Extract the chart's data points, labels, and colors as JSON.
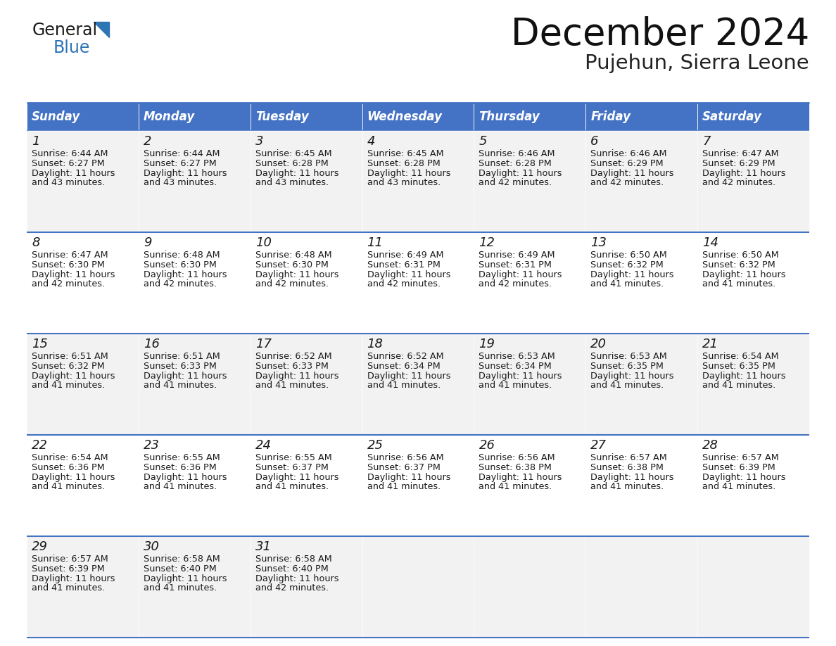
{
  "title": "December 2024",
  "subtitle": "Pujehun, Sierra Leone",
  "days_of_week": [
    "Sunday",
    "Monday",
    "Tuesday",
    "Wednesday",
    "Thursday",
    "Friday",
    "Saturday"
  ],
  "header_bg": "#4472C4",
  "header_text": "#FFFFFF",
  "row_bg_odd": "#F2F2F2",
  "row_bg_even": "#FFFFFF",
  "border_color": "#4472C4",
  "calendar_data": [
    [
      {
        "day": 1,
        "sunrise": "6:44 AM",
        "sunset": "6:27 PM",
        "daylight": "11 hours and 43 minutes"
      },
      {
        "day": 2,
        "sunrise": "6:44 AM",
        "sunset": "6:27 PM",
        "daylight": "11 hours and 43 minutes"
      },
      {
        "day": 3,
        "sunrise": "6:45 AM",
        "sunset": "6:28 PM",
        "daylight": "11 hours and 43 minutes"
      },
      {
        "day": 4,
        "sunrise": "6:45 AM",
        "sunset": "6:28 PM",
        "daylight": "11 hours and 43 minutes"
      },
      {
        "day": 5,
        "sunrise": "6:46 AM",
        "sunset": "6:28 PM",
        "daylight": "11 hours and 42 minutes"
      },
      {
        "day": 6,
        "sunrise": "6:46 AM",
        "sunset": "6:29 PM",
        "daylight": "11 hours and 42 minutes"
      },
      {
        "day": 7,
        "sunrise": "6:47 AM",
        "sunset": "6:29 PM",
        "daylight": "11 hours and 42 minutes"
      }
    ],
    [
      {
        "day": 8,
        "sunrise": "6:47 AM",
        "sunset": "6:30 PM",
        "daylight": "11 hours and 42 minutes"
      },
      {
        "day": 9,
        "sunrise": "6:48 AM",
        "sunset": "6:30 PM",
        "daylight": "11 hours and 42 minutes"
      },
      {
        "day": 10,
        "sunrise": "6:48 AM",
        "sunset": "6:30 PM",
        "daylight": "11 hours and 42 minutes"
      },
      {
        "day": 11,
        "sunrise": "6:49 AM",
        "sunset": "6:31 PM",
        "daylight": "11 hours and 42 minutes"
      },
      {
        "day": 12,
        "sunrise": "6:49 AM",
        "sunset": "6:31 PM",
        "daylight": "11 hours and 42 minutes"
      },
      {
        "day": 13,
        "sunrise": "6:50 AM",
        "sunset": "6:32 PM",
        "daylight": "11 hours and 41 minutes"
      },
      {
        "day": 14,
        "sunrise": "6:50 AM",
        "sunset": "6:32 PM",
        "daylight": "11 hours and 41 minutes"
      }
    ],
    [
      {
        "day": 15,
        "sunrise": "6:51 AM",
        "sunset": "6:32 PM",
        "daylight": "11 hours and 41 minutes"
      },
      {
        "day": 16,
        "sunrise": "6:51 AM",
        "sunset": "6:33 PM",
        "daylight": "11 hours and 41 minutes"
      },
      {
        "day": 17,
        "sunrise": "6:52 AM",
        "sunset": "6:33 PM",
        "daylight": "11 hours and 41 minutes"
      },
      {
        "day": 18,
        "sunrise": "6:52 AM",
        "sunset": "6:34 PM",
        "daylight": "11 hours and 41 minutes"
      },
      {
        "day": 19,
        "sunrise": "6:53 AM",
        "sunset": "6:34 PM",
        "daylight": "11 hours and 41 minutes"
      },
      {
        "day": 20,
        "sunrise": "6:53 AM",
        "sunset": "6:35 PM",
        "daylight": "11 hours and 41 minutes"
      },
      {
        "day": 21,
        "sunrise": "6:54 AM",
        "sunset": "6:35 PM",
        "daylight": "11 hours and 41 minutes"
      }
    ],
    [
      {
        "day": 22,
        "sunrise": "6:54 AM",
        "sunset": "6:36 PM",
        "daylight": "11 hours and 41 minutes"
      },
      {
        "day": 23,
        "sunrise": "6:55 AM",
        "sunset": "6:36 PM",
        "daylight": "11 hours and 41 minutes"
      },
      {
        "day": 24,
        "sunrise": "6:55 AM",
        "sunset": "6:37 PM",
        "daylight": "11 hours and 41 minutes"
      },
      {
        "day": 25,
        "sunrise": "6:56 AM",
        "sunset": "6:37 PM",
        "daylight": "11 hours and 41 minutes"
      },
      {
        "day": 26,
        "sunrise": "6:56 AM",
        "sunset": "6:38 PM",
        "daylight": "11 hours and 41 minutes"
      },
      {
        "day": 27,
        "sunrise": "6:57 AM",
        "sunset": "6:38 PM",
        "daylight": "11 hours and 41 minutes"
      },
      {
        "day": 28,
        "sunrise": "6:57 AM",
        "sunset": "6:39 PM",
        "daylight": "11 hours and 41 minutes"
      }
    ],
    [
      {
        "day": 29,
        "sunrise": "6:57 AM",
        "sunset": "6:39 PM",
        "daylight": "11 hours and 41 minutes"
      },
      {
        "day": 30,
        "sunrise": "6:58 AM",
        "sunset": "6:40 PM",
        "daylight": "11 hours and 41 minutes"
      },
      {
        "day": 31,
        "sunrise": "6:58 AM",
        "sunset": "6:40 PM",
        "daylight": "11 hours and 42 minutes"
      },
      null,
      null,
      null,
      null
    ]
  ],
  "logo_triangle_color": "#2E75B6"
}
